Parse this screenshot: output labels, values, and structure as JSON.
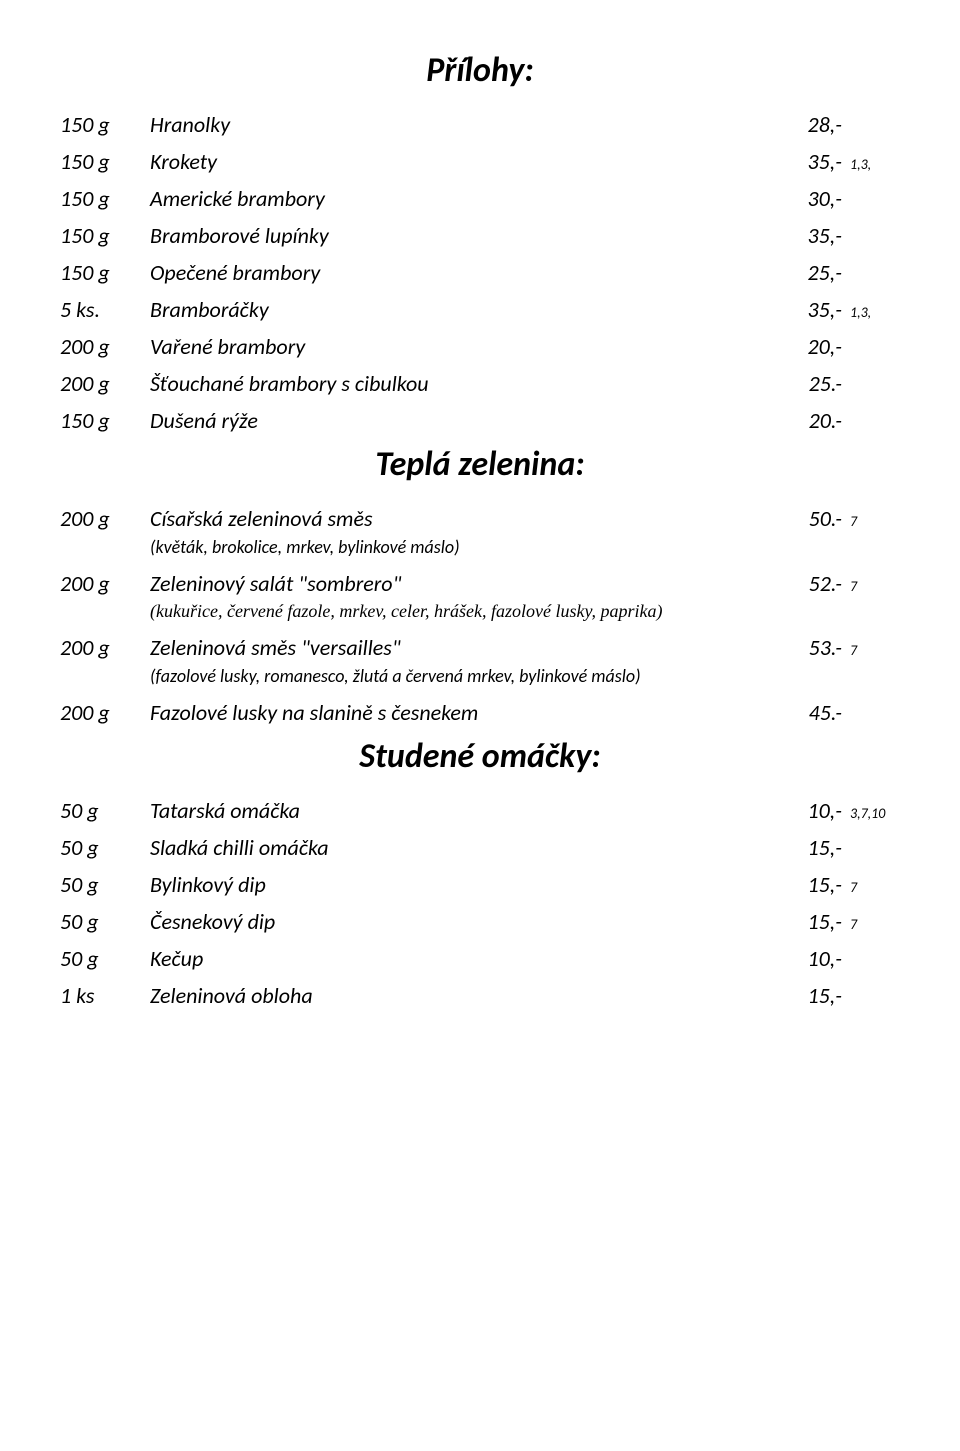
{
  "sections": {
    "prilohy": {
      "title": "Přílohy:",
      "items": [
        {
          "qty": "150 g",
          "name": "Hranolky",
          "price": "28,-",
          "allergen": ""
        },
        {
          "qty": "150 g",
          "name": "Krokety",
          "price": "35,-",
          "allergen": "1,3,"
        },
        {
          "qty": "150 g",
          "name": "Americké brambory",
          "price": "30,-",
          "allergen": ""
        },
        {
          "qty": "150 g",
          "name": "Bramborové lupínky",
          "price": "35,-",
          "allergen": ""
        },
        {
          "qty": "150 g",
          "name": "Opečené brambory",
          "price": "25,-",
          "allergen": ""
        },
        {
          "qty": "5 ks.",
          "name": "Bramboráčky",
          "price": "35,-",
          "allergen": "1,3,"
        },
        {
          "qty": "200 g",
          "name": "Vařené brambory",
          "price": "20,-",
          "allergen": ""
        },
        {
          "qty": "200 g",
          "name": "Šťouchané brambory s cibulkou",
          "price": "25.-",
          "allergen": ""
        },
        {
          "qty": "150 g",
          "name": "Dušená rýže",
          "price": "20.-",
          "allergen": ""
        }
      ]
    },
    "tepla": {
      "title": "Teplá zelenina:",
      "items": [
        {
          "qty": "200 g",
          "name": "Císařská zeleninová  směs",
          "price": "50.-",
          "allergen": "7",
          "desc": "(květák, brokolice, mrkev, bylinkové máslo)",
          "descClass": ""
        },
        {
          "qty": "200 g",
          "name": "Zeleninový salát \"sombrero\"",
          "price": "52.-",
          "allergen": "7",
          "desc": "(kukuřice, červené fazole, mrkev, celer, hrášek, fazolové lusky, paprika)",
          "descClass": "script"
        },
        {
          "qty": "200 g",
          "name": "Zeleninová směs \"versailles\"",
          "price": "53.-",
          "allergen": "7",
          "desc": "(fazolové lusky, romanesco, žlutá a červená mrkev, bylinkové máslo)",
          "descClass": ""
        },
        {
          "qty": "200 g",
          "name": "Fazolové lusky na slanině s česnekem",
          "price": "45.-",
          "allergen": ""
        }
      ]
    },
    "studene": {
      "title": "Studené omáčky:",
      "items": [
        {
          "qty": "50 g",
          "name": "Tatarská omáčka",
          "price": "10,-",
          "allergen": "3,7,10"
        },
        {
          "qty": "50 g",
          "name": "Sladká chilli omáčka",
          "price": "15,-",
          "allergen": ""
        },
        {
          "qty": "50 g",
          "name": "Bylinkový dip",
          "price": "15,-",
          "allergen": "7"
        },
        {
          "qty": "50 g",
          "name": "Česnekový dip",
          "price": "15,-",
          "allergen": "7"
        },
        {
          "qty": "50 g",
          "name": "Kečup",
          "price": "10,-",
          "allergen": ""
        },
        {
          "qty": "1 ks",
          "name": "Zeleninová obloha",
          "price": "15,-",
          "allergen": ""
        }
      ]
    }
  }
}
